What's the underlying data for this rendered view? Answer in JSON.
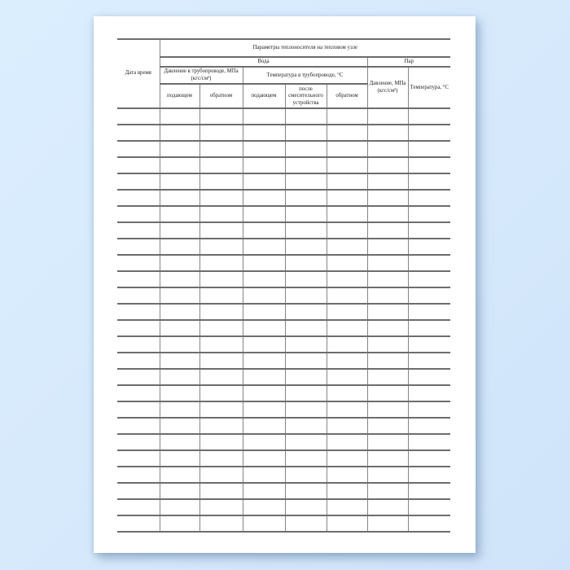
{
  "app": {
    "background_color": "#d6e9fc",
    "page_color": "#ffffff",
    "horizontal_line_color": "#6d6d6d",
    "vertical_line_color": "#858585",
    "text_color": "#1e1e1e"
  },
  "table": {
    "title": "Параметры теплоносителя на тепловом узле",
    "date_time_column": "Дата время",
    "groups": {
      "water": "Вода",
      "steam": "Пар"
    },
    "water": {
      "pressure_group": "Давление в трубопроводе, МПа (кгс/см²)",
      "temperature_group": "Температура в трубопроводе, °С",
      "pressure_supply": "подающем",
      "pressure_return": "обратном",
      "temp_supply": "подающем",
      "temp_after_mixer": "после смесительного устройства",
      "temp_return": "обратном"
    },
    "steam": {
      "pressure": "Давление, МПа (кгс/см²)",
      "temperature": "Температура, °С"
    },
    "body": {
      "rows": 26,
      "columns": 8,
      "cell_value": ""
    }
  }
}
